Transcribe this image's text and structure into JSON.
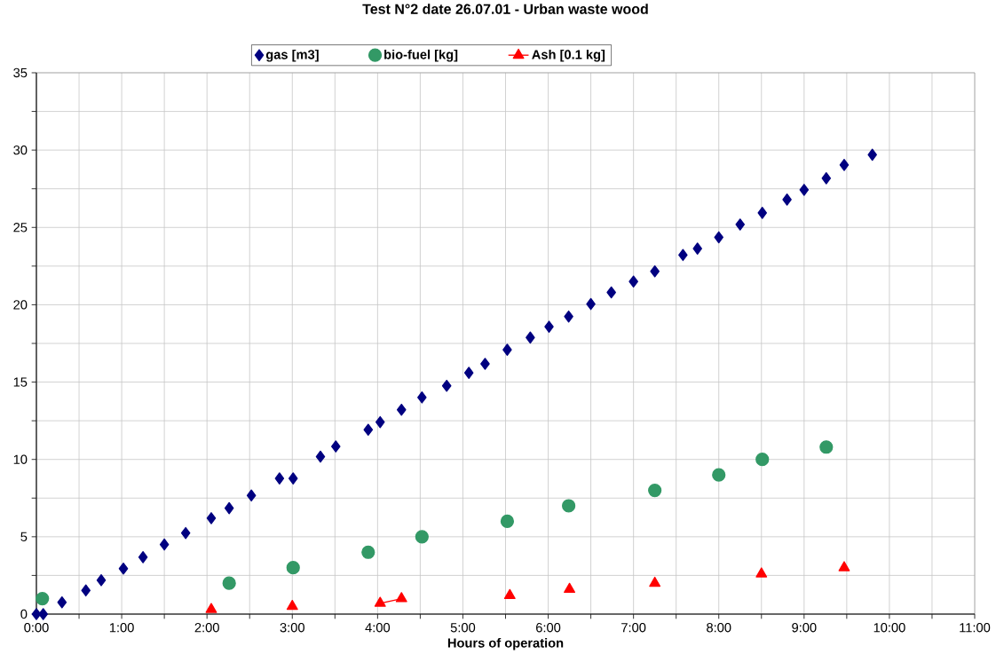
{
  "chart_data": {
    "type": "scatter",
    "title": "Test N°2 date 26.07.01 - Urban waste wood",
    "xlabel": "Hours of operation",
    "series": [
      {
        "name": "gas [m3]",
        "marker": "diamond",
        "color": "#000080",
        "x": [
          0,
          0.08,
          0.3,
          0.58,
          0.76,
          1.02,
          1.25,
          1.5,
          1.75,
          2.05,
          2.26,
          2.52,
          2.85,
          3.01,
          3.33,
          3.51,
          3.89,
          4.03,
          4.28,
          4.52,
          4.81,
          5.07,
          5.26,
          5.52,
          5.79,
          6.01,
          6.24,
          6.5,
          6.74,
          7.0,
          7.25,
          7.58,
          7.75,
          8.0,
          8.25,
          8.51,
          8.8,
          9.0,
          9.26,
          9.47,
          9.8
        ],
        "values": [
          0,
          0,
          0.76,
          1.53,
          2.19,
          2.94,
          3.68,
          4.5,
          5.24,
          6.2,
          6.85,
          7.67,
          8.77,
          8.77,
          10.18,
          10.84,
          11.92,
          12.41,
          13.21,
          14.01,
          14.76,
          15.6,
          16.18,
          17.09,
          17.88,
          18.58,
          19.24,
          20.05,
          20.8,
          21.5,
          22.16,
          23.22,
          23.63,
          24.36,
          25.19,
          25.94,
          26.8,
          27.43,
          28.18,
          29.04,
          29.7
        ]
      },
      {
        "name": "bio-fuel [kg]",
        "marker": "circle",
        "color": "#339966",
        "x": [
          0.07,
          2.26,
          3.01,
          3.89,
          4.52,
          5.52,
          6.24,
          7.25,
          8.0,
          8.51,
          9.26
        ],
        "values": [
          1,
          2,
          3,
          4,
          5,
          6,
          7,
          8,
          9,
          10,
          10.8
        ]
      },
      {
        "name": "Ash [0.1 kg]",
        "type": "line",
        "marker": "triangle",
        "line_style": "solid",
        "color": "#ff0000",
        "x": [
          2.05,
          null,
          3.0,
          null,
          4.03,
          4.28,
          null,
          5.55,
          null,
          6.25,
          null,
          7.25,
          null,
          8.5,
          null,
          9.47
        ],
        "values": [
          0.3,
          null,
          0.5,
          null,
          0.7,
          1.0,
          null,
          1.2,
          null,
          1.6,
          null,
          2.0,
          null,
          2.6,
          null,
          3.0
        ]
      }
    ],
    "xlim": [
      0,
      11
    ],
    "ylim": [
      0,
      35
    ],
    "xticks": [
      {
        "value": 0,
        "label": "0:00"
      },
      {
        "value": 0.5,
        "label": null
      },
      {
        "value": 1,
        "label": "1:00"
      },
      {
        "value": 1.5,
        "label": null
      },
      {
        "value": 2,
        "label": "2:00"
      },
      {
        "value": 2.5,
        "label": null
      },
      {
        "value": 3,
        "label": "3:00"
      },
      {
        "value": 3.5,
        "label": null
      },
      {
        "value": 4,
        "label": "4:00"
      },
      {
        "value": 4.5,
        "label": null
      },
      {
        "value": 5,
        "label": "5:00"
      },
      {
        "value": 5.5,
        "label": null
      },
      {
        "value": 6,
        "label": "6:00"
      },
      {
        "value": 6.5,
        "label": null
      },
      {
        "value": 7,
        "label": "7:00"
      },
      {
        "value": 7.5,
        "label": null
      },
      {
        "value": 8,
        "label": "8:00"
      },
      {
        "value": 8.5,
        "label": null
      },
      {
        "value": 9,
        "label": "9:00"
      },
      {
        "value": 9.5,
        "label": null
      },
      {
        "value": 10,
        "label": "10:00"
      },
      {
        "value": 10.5,
        "label": null
      },
      {
        "value": 11,
        "label": "11:00"
      }
    ],
    "yticks": [
      0,
      {
        "value": 2.5,
        "label": null
      },
      5,
      {
        "value": 7.5,
        "label": null
      },
      10,
      {
        "value": 12.5,
        "label": null
      },
      15,
      {
        "value": 17.5,
        "label": null
      },
      20,
      {
        "value": 22.5,
        "label": null
      },
      25,
      {
        "value": 27.5,
        "label": null
      },
      30,
      {
        "value": 32.5,
        "label": null
      },
      35
    ],
    "grid": true,
    "legend": "top"
  }
}
